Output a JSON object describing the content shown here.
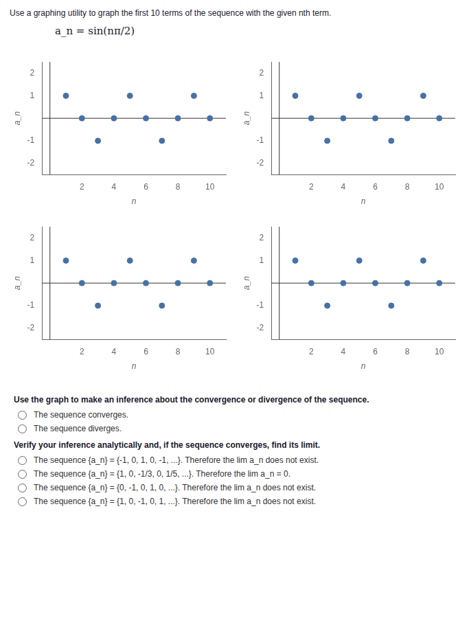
{
  "title": "Use a graphing utility to graph the first 10 terms of the sequence with the given nth term.",
  "subtitle": "a_n = sin(nπ/2)",
  "annotations": [
    "Use the graph to make an inference about the convergence or divergence of the sequence.",
    "The sequence converges.",
    "The sequence diverges.",
    "Verify your inference analytically and, if the sequence converges, find its limit.",
    "The sequence {a_n} = {-1, 0, 1, 0, -1, ...}. Therefore the  lim a_n does not exist.",
    "The sequence {a_n} = {1, 0, -1/3, 0, 1/5, ...}. Therefore the  lim a_n = 0.",
    "The sequence {a_n} = {0, -1, 0, 1, 0, ...}. Therefore the  lim a_n does not exist.",
    "The sequence {a_n} = {1, 0, -1, 0, 1, ...}. Therefore the  lim a_n does not exist."
  ],
  "chart_data": [
    {
      "type": "scatter",
      "x_label": "n",
      "y_label": "a_n",
      "x": [
        1,
        2,
        3,
        4,
        5,
        6,
        7,
        8,
        9,
        10
      ],
      "values": [
        1.0,
        0.0,
        -1.0,
        0.0,
        1.0,
        0.0,
        -1.0,
        0.0,
        1.0,
        0.0
      ],
      "color": "#4472a8",
      "xlim": [
        -0.5,
        11
      ],
      "xticks": [
        2,
        4,
        6,
        8,
        10
      ],
      "ylim": [
        -2.5,
        2.5
      ],
      "yticks": [
        -2,
        -1,
        1,
        2
      ],
      "grid": false
    },
    {
      "type": "scatter",
      "x_label": "n",
      "y_label": "a_n",
      "x": [
        1,
        2,
        3,
        4,
        5,
        6,
        7,
        8,
        9,
        10
      ],
      "values": [
        1.0,
        0.0,
        -1.0,
        0.0,
        1.0,
        0.0,
        -1.0,
        0.0,
        1.0,
        0.0
      ],
      "color": "#4472a8",
      "xlim": [
        -0.5,
        11
      ],
      "xticks": [
        2,
        4,
        6,
        8,
        10
      ],
      "ylim": [
        -2.5,
        2.5
      ],
      "yticks": [
        -2,
        -1,
        1,
        2
      ],
      "grid": false
    },
    {
      "type": "scatter",
      "x_label": "n",
      "y_label": "a_n",
      "x": [
        1,
        2,
        3,
        4,
        5,
        6,
        7,
        8,
        9,
        10
      ],
      "values": [
        1.0,
        0.0,
        -1.0,
        0.0,
        1.0,
        0.0,
        -1.0,
        0.0,
        1.0,
        0.0
      ],
      "color": "#4472a8",
      "xlim": [
        -0.5,
        11
      ],
      "xticks": [
        2,
        4,
        6,
        8,
        10
      ],
      "ylim": [
        -2.5,
        2.5
      ],
      "yticks": [
        -2,
        -1,
        1,
        2
      ],
      "grid": false
    },
    {
      "type": "scatter",
      "x_label": "n",
      "y_label": "a_n",
      "x": [
        1,
        2,
        3,
        4,
        5,
        6,
        7,
        8,
        9,
        10
      ],
      "values": [
        1.0,
        0.0,
        -1.0,
        0.0,
        1.0,
        0.0,
        -1.0,
        0.0,
        1.0,
        0.0
      ],
      "color": "#4472a8",
      "xlim": [
        -0.5,
        11
      ],
      "xticks": [
        2,
        4,
        6,
        8,
        10
      ],
      "ylim": [
        -2.5,
        2.5
      ],
      "yticks": [
        -2,
        -1,
        1,
        2
      ],
      "grid": false
    }
  ]
}
